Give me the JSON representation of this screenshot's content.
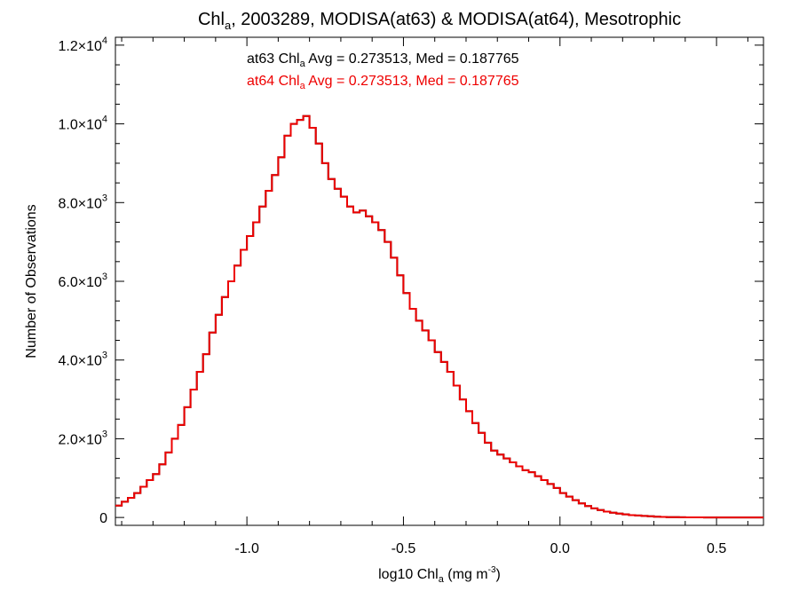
{
  "chart_data": {
    "type": "histogram-step",
    "title": {
      "prefix": "Chl",
      "subscript": "a",
      "rest": ", 2003289, MODISA(at63) & MODISA(at64), Mesotrophic"
    },
    "xlabel": {
      "prefix": "log10 Chl",
      "subscript": "a",
      "mid": " (mg m",
      "superscript": "-3",
      "suffix": ")"
    },
    "ylabel": "Number of Observations",
    "xlim": [
      -1.42,
      0.65
    ],
    "ylim": [
      -200,
      12200
    ],
    "xticks": [
      {
        "value": -1.0,
        "label": "-1.0"
      },
      {
        "value": -0.5,
        "label": "-0.5"
      },
      {
        "value": 0.0,
        "label": "0.0"
      },
      {
        "value": 0.5,
        "label": "0.5"
      }
    ],
    "yticks": [
      {
        "value": 0,
        "mantissa": "0",
        "exp": ""
      },
      {
        "value": 2000,
        "mantissa": "2.0×10",
        "exp": "3"
      },
      {
        "value": 4000,
        "mantissa": "4.0×10",
        "exp": "3"
      },
      {
        "value": 6000,
        "mantissa": "6.0×10",
        "exp": "3"
      },
      {
        "value": 8000,
        "mantissa": "8.0×10",
        "exp": "3"
      },
      {
        "value": 10000,
        "mantissa": "1.0×10",
        "exp": "4"
      },
      {
        "value": 12000,
        "mantissa": "1.2×10",
        "exp": "4"
      }
    ],
    "annotations": [
      {
        "series": "at63",
        "prefix": "at63 Chl",
        "subscript": "a",
        "rest": " Avg = 0.273513, Med = 0.187765",
        "color": "#000000"
      },
      {
        "series": "at64",
        "prefix": "at64 Chl",
        "subscript": "a",
        "rest": " Avg = 0.273513, Med = 0.187765",
        "color": "#ee0000"
      }
    ],
    "series": [
      {
        "name": "at63",
        "color": "#000000"
      },
      {
        "name": "at64",
        "color": "#ee0000"
      }
    ],
    "x": [
      -1.42,
      -1.4,
      -1.38,
      -1.36,
      -1.34,
      -1.32,
      -1.3,
      -1.28,
      -1.26,
      -1.24,
      -1.22,
      -1.2,
      -1.18,
      -1.16,
      -1.14,
      -1.12,
      -1.1,
      -1.08,
      -1.06,
      -1.04,
      -1.02,
      -1.0,
      -0.98,
      -0.96,
      -0.94,
      -0.92,
      -0.9,
      -0.88,
      -0.86,
      -0.84,
      -0.82,
      -0.8,
      -0.78,
      -0.76,
      -0.74,
      -0.72,
      -0.7,
      -0.68,
      -0.66,
      -0.64,
      -0.62,
      -0.6,
      -0.58,
      -0.56,
      -0.54,
      -0.52,
      -0.5,
      -0.48,
      -0.46,
      -0.44,
      -0.42,
      -0.4,
      -0.38,
      -0.36,
      -0.34,
      -0.32,
      -0.3,
      -0.28,
      -0.26,
      -0.24,
      -0.22,
      -0.2,
      -0.18,
      -0.16,
      -0.14,
      -0.12,
      -0.1,
      -0.08,
      -0.06,
      -0.04,
      -0.02,
      0.0,
      0.02,
      0.04,
      0.06,
      0.08,
      0.1,
      0.12,
      0.14,
      0.16,
      0.18,
      0.2,
      0.22,
      0.24,
      0.26,
      0.28,
      0.3,
      0.32,
      0.34,
      0.36,
      0.38,
      0.4,
      0.42,
      0.44,
      0.46,
      0.48,
      0.5,
      0.52,
      0.54,
      0.56,
      0.58,
      0.6,
      0.62,
      0.65
    ],
    "values": [
      300,
      400,
      500,
      620,
      780,
      950,
      1100,
      1350,
      1650,
      2000,
      2350,
      2800,
      3250,
      3700,
      4150,
      4700,
      5150,
      5600,
      6000,
      6400,
      6800,
      7150,
      7500,
      7900,
      8300,
      8700,
      9150,
      9700,
      10000,
      10100,
      10200,
      9900,
      9500,
      9000,
      8600,
      8350,
      8150,
      7900,
      7750,
      7800,
      7650,
      7500,
      7300,
      7000,
      6600,
      6150,
      5700,
      5300,
      5000,
      4750,
      4500,
      4200,
      3950,
      3700,
      3350,
      3000,
      2700,
      2400,
      2150,
      1900,
      1700,
      1600,
      1500,
      1400,
      1300,
      1200,
      1150,
      1050,
      950,
      850,
      750,
      620,
      530,
      440,
      360,
      290,
      230,
      190,
      150,
      120,
      100,
      80,
      60,
      50,
      40,
      30,
      20,
      15,
      10,
      8,
      5,
      4,
      3,
      2,
      1,
      1,
      0,
      0,
      0,
      0,
      0,
      0,
      0,
      0
    ]
  }
}
